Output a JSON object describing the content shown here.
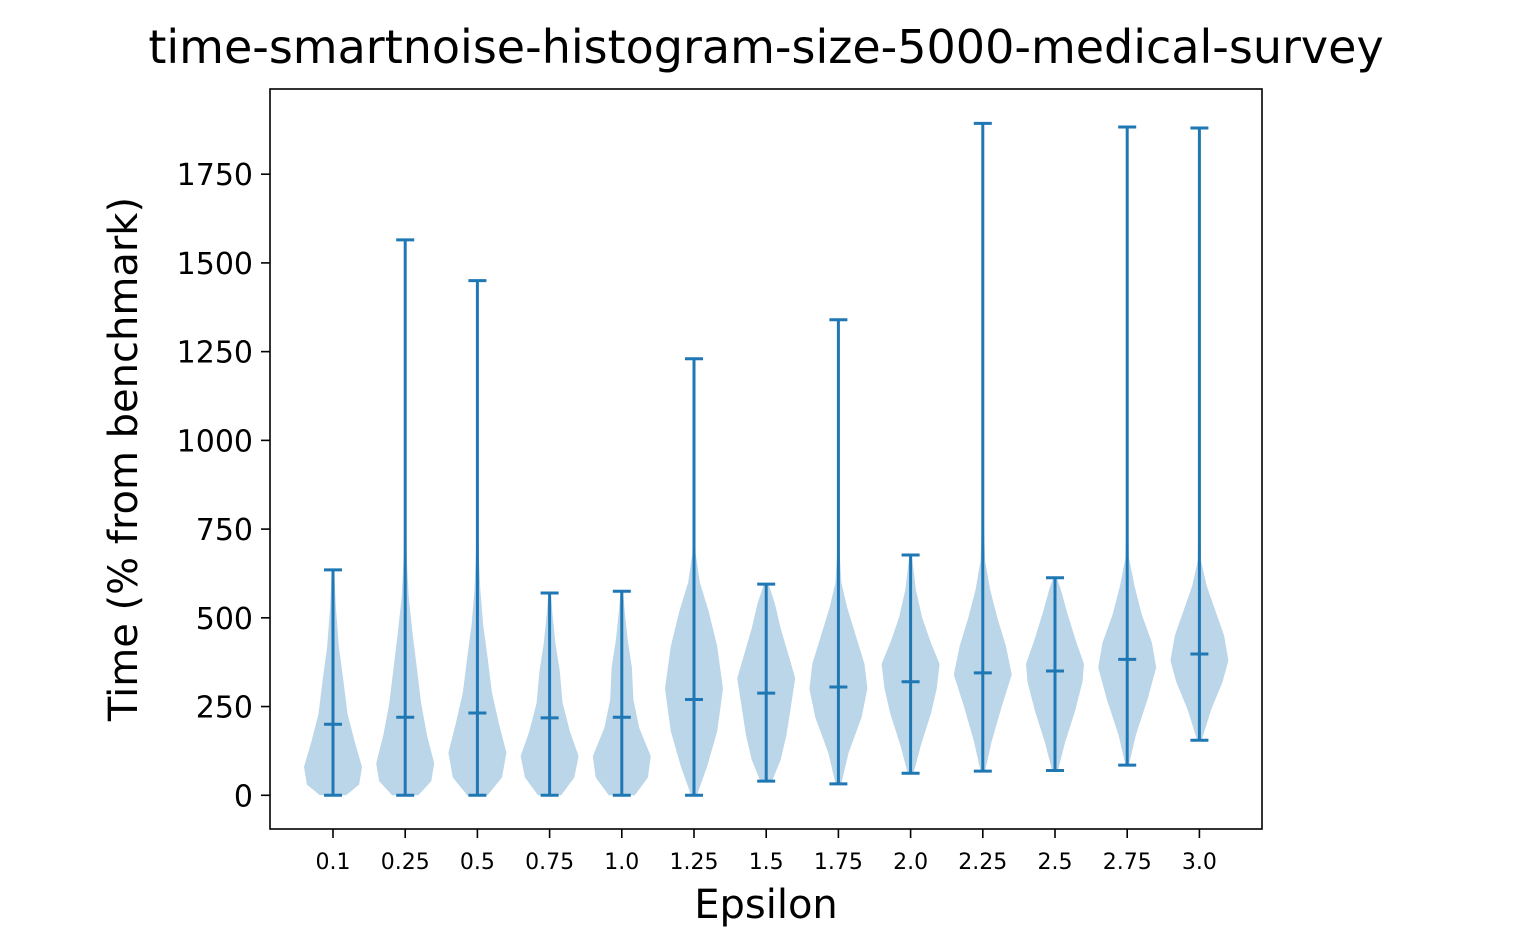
{
  "chart_data": {
    "type": "violin",
    "title": "time-smartnoise-histogram-size-5000-medical-survey",
    "xlabel": "Epsilon",
    "ylabel": "Time (% from benchmark)",
    "categories": [
      "0.1",
      "0.25",
      "0.5",
      "0.75",
      "1.0",
      "1.25",
      "1.5",
      "1.75",
      "2.0",
      "2.25",
      "2.5",
      "2.75",
      "3.0"
    ],
    "ylim": [
      -95,
      1990
    ],
    "yticks": [
      0,
      250,
      500,
      750,
      1000,
      1250,
      1500,
      1750
    ],
    "ytick_labels": [
      "0",
      "250",
      "500",
      "750",
      "1000",
      "1250",
      "1500",
      "1750"
    ],
    "grid": false,
    "colors": {
      "body": "#1f77b4",
      "line": "#1f77b4"
    },
    "series": [
      {
        "min": 0,
        "max": 635,
        "median": 200,
        "body": [
          [
            0,
            0.45
          ],
          [
            30,
            0.9
          ],
          [
            80,
            1.0
          ],
          [
            150,
            0.75
          ],
          [
            230,
            0.5
          ],
          [
            330,
            0.35
          ],
          [
            420,
            0.2
          ],
          [
            530,
            0.1
          ],
          [
            635,
            0.04
          ]
        ]
      },
      {
        "min": 0,
        "max": 1565,
        "median": 220,
        "body": [
          [
            0,
            0.45
          ],
          [
            40,
            0.9
          ],
          [
            90,
            1.0
          ],
          [
            170,
            0.75
          ],
          [
            260,
            0.55
          ],
          [
            360,
            0.4
          ],
          [
            460,
            0.25
          ],
          [
            560,
            0.12
          ],
          [
            660,
            0.06
          ],
          [
            800,
            0.02
          ],
          [
            1565,
            0.01
          ]
        ]
      },
      {
        "min": 0,
        "max": 1450,
        "median": 232,
        "body": [
          [
            0,
            0.35
          ],
          [
            50,
            0.85
          ],
          [
            120,
            1.0
          ],
          [
            200,
            0.75
          ],
          [
            290,
            0.5
          ],
          [
            390,
            0.35
          ],
          [
            480,
            0.2
          ],
          [
            580,
            0.1
          ],
          [
            680,
            0.05
          ],
          [
            800,
            0.02
          ],
          [
            1450,
            0.01
          ]
        ]
      },
      {
        "min": 0,
        "max": 570,
        "median": 218,
        "body": [
          [
            0,
            0.4
          ],
          [
            50,
            0.85
          ],
          [
            110,
            1.0
          ],
          [
            180,
            0.7
          ],
          [
            260,
            0.45
          ],
          [
            350,
            0.35
          ],
          [
            430,
            0.2
          ],
          [
            510,
            0.1
          ],
          [
            570,
            0.04
          ]
        ]
      },
      {
        "min": 0,
        "max": 575,
        "median": 220,
        "body": [
          [
            0,
            0.45
          ],
          [
            50,
            0.9
          ],
          [
            110,
            1.0
          ],
          [
            190,
            0.6
          ],
          [
            270,
            0.4
          ],
          [
            360,
            0.35
          ],
          [
            440,
            0.2
          ],
          [
            520,
            0.1
          ],
          [
            575,
            0.04
          ]
        ]
      },
      {
        "min": 0,
        "max": 1230,
        "median": 270,
        "body": [
          [
            0,
            0.1
          ],
          [
            80,
            0.45
          ],
          [
            180,
            0.8
          ],
          [
            300,
            1.0
          ],
          [
            420,
            0.8
          ],
          [
            520,
            0.5
          ],
          [
            600,
            0.2
          ],
          [
            680,
            0.06
          ],
          [
            800,
            0.02
          ],
          [
            1230,
            0.01
          ]
        ]
      },
      {
        "min": 40,
        "max": 595,
        "median": 288,
        "body": [
          [
            40,
            0.2
          ],
          [
            100,
            0.5
          ],
          [
            170,
            0.7
          ],
          [
            250,
            0.85
          ],
          [
            330,
            1.0
          ],
          [
            400,
            0.75
          ],
          [
            470,
            0.5
          ],
          [
            540,
            0.3
          ],
          [
            595,
            0.08
          ]
        ]
      },
      {
        "min": 32,
        "max": 1340,
        "median": 305,
        "body": [
          [
            32,
            0.1
          ],
          [
            120,
            0.35
          ],
          [
            220,
            0.8
          ],
          [
            300,
            1.0
          ],
          [
            370,
            0.9
          ],
          [
            450,
            0.6
          ],
          [
            530,
            0.3
          ],
          [
            600,
            0.1
          ],
          [
            700,
            0.03
          ],
          [
            1340,
            0.01
          ]
        ]
      },
      {
        "min": 62,
        "max": 677,
        "median": 320,
        "body": [
          [
            62,
            0.1
          ],
          [
            140,
            0.35
          ],
          [
            230,
            0.7
          ],
          [
            300,
            0.9
          ],
          [
            370,
            1.0
          ],
          [
            430,
            0.7
          ],
          [
            500,
            0.4
          ],
          [
            580,
            0.18
          ],
          [
            677,
            0.04
          ]
        ]
      },
      {
        "min": 68,
        "max": 1893,
        "median": 345,
        "body": [
          [
            68,
            0.08
          ],
          [
            150,
            0.3
          ],
          [
            250,
            0.65
          ],
          [
            340,
            1.0
          ],
          [
            420,
            0.8
          ],
          [
            500,
            0.5
          ],
          [
            580,
            0.25
          ],
          [
            660,
            0.08
          ],
          [
            800,
            0.02
          ],
          [
            1893,
            0.01
          ]
        ]
      },
      {
        "min": 70,
        "max": 613,
        "median": 350,
        "body": [
          [
            70,
            0.1
          ],
          [
            150,
            0.35
          ],
          [
            240,
            0.7
          ],
          [
            320,
            0.95
          ],
          [
            370,
            1.0
          ],
          [
            440,
            0.7
          ],
          [
            520,
            0.4
          ],
          [
            580,
            0.2
          ],
          [
            613,
            0.06
          ]
        ]
      },
      {
        "min": 85,
        "max": 1883,
        "median": 383,
        "body": [
          [
            85,
            0.06
          ],
          [
            170,
            0.3
          ],
          [
            270,
            0.7
          ],
          [
            360,
            1.0
          ],
          [
            430,
            0.85
          ],
          [
            510,
            0.5
          ],
          [
            590,
            0.25
          ],
          [
            670,
            0.06
          ],
          [
            800,
            0.02
          ],
          [
            1883,
            0.01
          ]
        ]
      },
      {
        "min": 155,
        "max": 1880,
        "median": 398,
        "body": [
          [
            155,
            0.08
          ],
          [
            240,
            0.4
          ],
          [
            320,
            0.8
          ],
          [
            380,
            1.0
          ],
          [
            450,
            0.85
          ],
          [
            520,
            0.55
          ],
          [
            590,
            0.25
          ],
          [
            660,
            0.06
          ],
          [
            800,
            0.02
          ],
          [
            1880,
            0.01
          ]
        ]
      }
    ]
  }
}
